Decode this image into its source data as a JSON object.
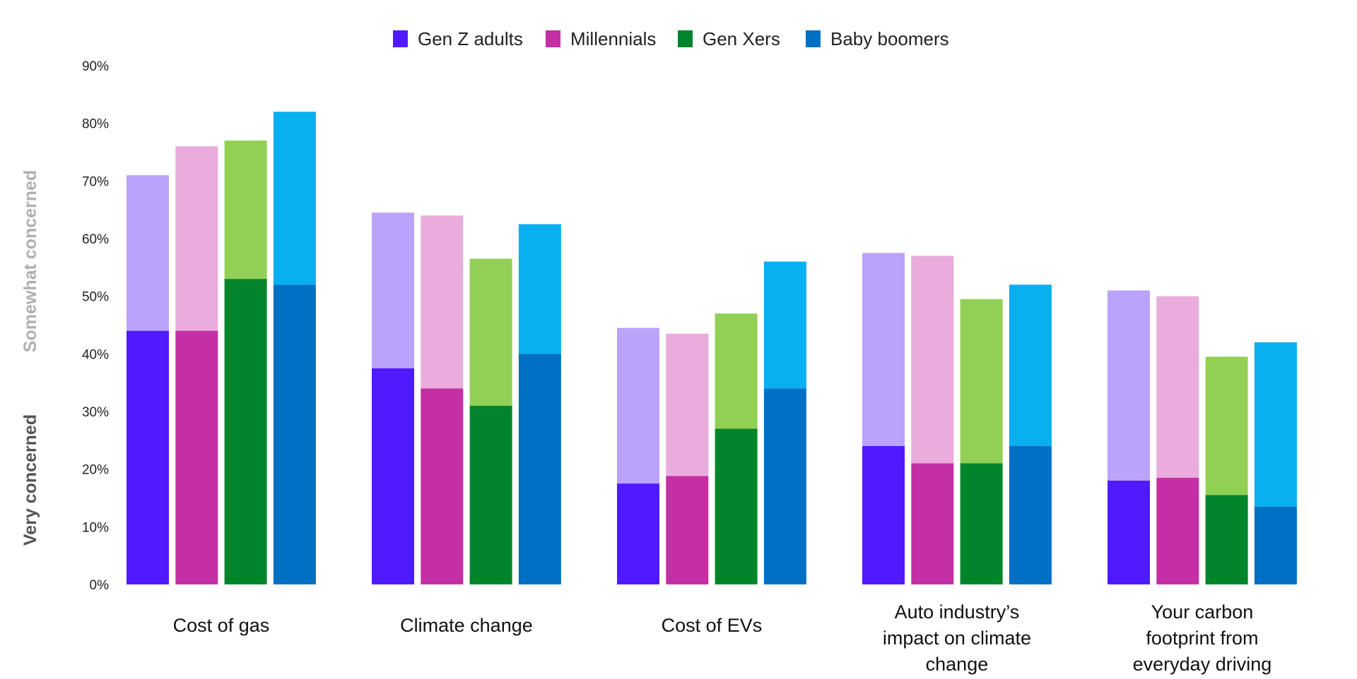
{
  "chart_data": {
    "type": "bar",
    "stacked": true,
    "categories": [
      "Cost of gas",
      "Climate change",
      "Cost of EVs",
      "Auto industry’s impact on climate change",
      "Your carbon footprint from everyday driving"
    ],
    "category_lines": [
      [
        "Cost of gas"
      ],
      [
        "Climate change"
      ],
      [
        "Cost of EVs"
      ],
      [
        "Auto industry’s",
        "impact on climate",
        "change"
      ],
      [
        "Your carbon",
        "footprint from",
        "everyday driving"
      ]
    ],
    "series": [
      {
        "name": "Gen Z adults",
        "dark": "#4f1aff",
        "light": "#baa3fb",
        "very": [
          44,
          37.5,
          17.5,
          24,
          18
        ],
        "total": [
          71,
          64.5,
          44.5,
          57.5,
          51
        ]
      },
      {
        "name": "Millennials",
        "dark": "#c42fa5",
        "light": "#e9acdc",
        "very": [
          44,
          34,
          18.8,
          21,
          18.5
        ],
        "total": [
          76,
          64,
          43.5,
          57,
          50
        ]
      },
      {
        "name": "Gen Xers",
        "dark": "#00852b",
        "light": "#91d055",
        "very": [
          53,
          31,
          27,
          21,
          15.5
        ],
        "total": [
          77,
          56.5,
          47,
          49.5,
          39.5
        ]
      },
      {
        "name": "Baby boomers",
        "dark": "#0070c4",
        "light": "#08b0f0",
        "very": [
          52,
          40,
          34,
          24,
          13.5
        ],
        "total": [
          82,
          62.5,
          56,
          52,
          42
        ]
      }
    ],
    "ylim": [
      0,
      90
    ],
    "yticks": [
      "0%",
      "10%",
      "20%",
      "30%",
      "40%",
      "50%",
      "60%",
      "70%",
      "80%",
      "90%"
    ],
    "side_labels": {
      "very": "Very concerned",
      "somewhat": "Somewhat concerned"
    },
    "side_label_colors": {
      "very": "#555555",
      "somewhat": "#b0b0b0"
    },
    "legend_position": "top-center",
    "grid": false
  }
}
